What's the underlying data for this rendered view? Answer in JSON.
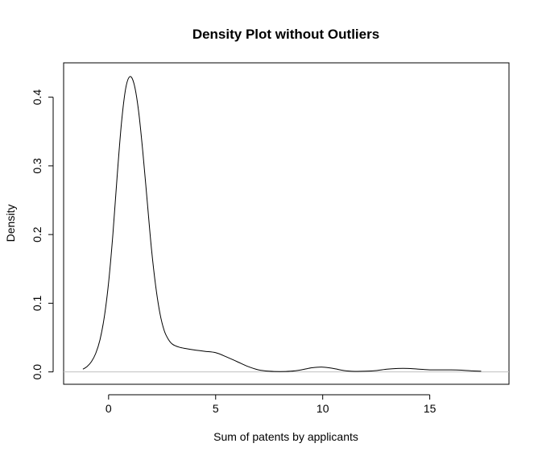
{
  "chart_data": {
    "type": "line",
    "title": "Density Plot without Outliers",
    "xlabel": "Sum of patents by applicants",
    "ylabel": "Density",
    "xlim": [
      -2.1,
      18.7
    ],
    "ylim": [
      -0.018,
      0.45
    ],
    "x_ticks": [
      0,
      5,
      10,
      15
    ],
    "x_tick_labels": [
      "0",
      "5",
      "10",
      "15"
    ],
    "y_ticks": [
      0.0,
      0.1,
      0.2,
      0.3,
      0.4
    ],
    "y_tick_labels": [
      "0.0",
      "0.1",
      "0.2",
      "0.3",
      "0.4"
    ],
    "grid": false,
    "legend": "none",
    "baseline": 0,
    "baseline_color": "#c0c0c0",
    "line_color": "#000000",
    "series": [
      {
        "x": [
          -1.2,
          -1.0,
          -0.8,
          -0.6,
          -0.4,
          -0.2,
          0.0,
          0.2,
          0.4,
          0.6,
          0.8,
          1.0,
          1.2,
          1.4,
          1.6,
          1.8,
          2.0,
          2.2,
          2.4,
          2.6,
          2.8,
          3.0,
          3.3,
          3.6,
          4.0,
          4.5,
          5.0,
          5.5,
          6.0,
          6.5,
          7.0,
          7.5,
          8.0,
          8.5,
          9.0,
          9.5,
          10.0,
          10.5,
          11.0,
          11.5,
          12.0,
          12.5,
          13.0,
          13.5,
          14.0,
          14.5,
          15.0,
          15.5,
          16.0,
          16.5,
          17.0,
          17.4
        ],
        "y": [
          0.004,
          0.008,
          0.015,
          0.027,
          0.047,
          0.08,
          0.13,
          0.2,
          0.285,
          0.362,
          0.413,
          0.43,
          0.418,
          0.38,
          0.32,
          0.25,
          0.18,
          0.125,
          0.085,
          0.06,
          0.047,
          0.04,
          0.036,
          0.034,
          0.032,
          0.03,
          0.028,
          0.022,
          0.015,
          0.008,
          0.003,
          0.001,
          0.0005,
          0.001,
          0.003,
          0.006,
          0.007,
          0.005,
          0.002,
          0.0008,
          0.001,
          0.002,
          0.004,
          0.005,
          0.005,
          0.004,
          0.003,
          0.003,
          0.003,
          0.0025,
          0.0015,
          0.001
        ]
      }
    ]
  }
}
